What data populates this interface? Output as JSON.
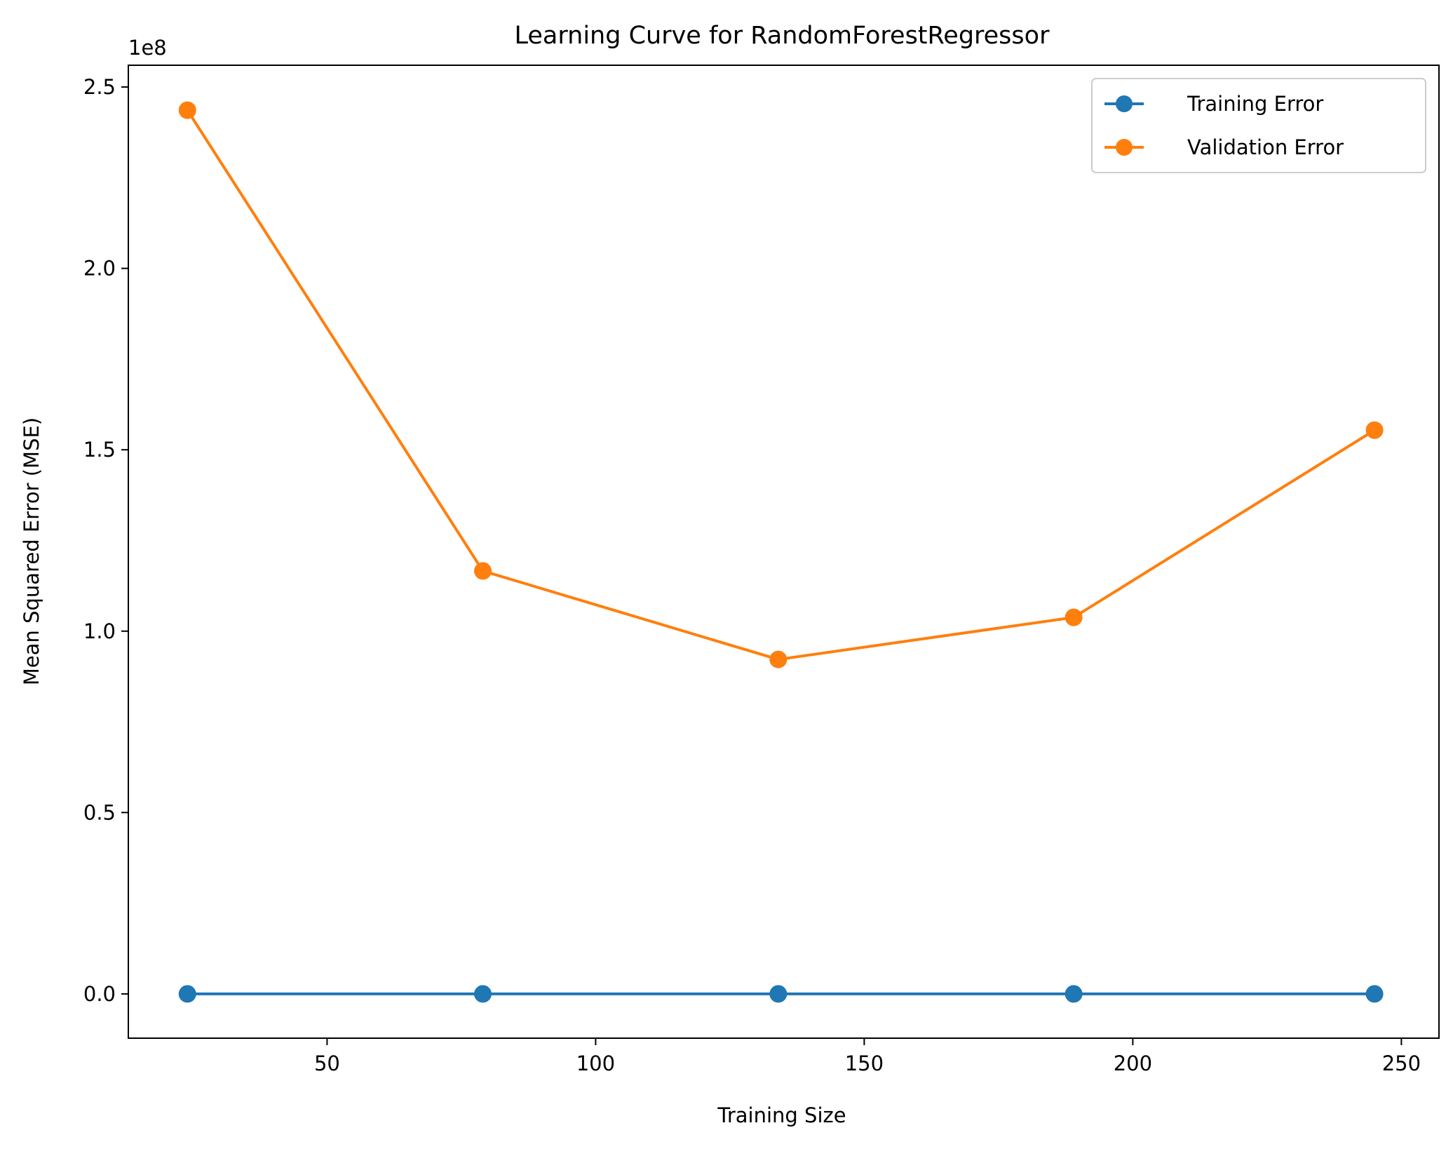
{
  "chart_data": {
    "type": "line",
    "title": "Learning Curve for RandomForestRegressor",
    "xlabel": "Training Size",
    "ylabel": "Mean Squared Error (MSE)",
    "y_offset_label": "1e8",
    "x": [
      24,
      79,
      134,
      189,
      245
    ],
    "series": [
      {
        "name": "Training Error",
        "color": "#1f77b4",
        "marker": "circle",
        "values": [
          0,
          0,
          0,
          0,
          0
        ]
      },
      {
        "name": "Validation Error",
        "color": "#ff7f0e",
        "marker": "circle",
        "values": [
          243600000,
          116600000,
          92200000,
          103800000,
          155400000
        ]
      }
    ],
    "xlim": [
      13,
      257
    ],
    "ylim": [
      -12200000,
      256000000
    ],
    "x_ticks": [
      50,
      100,
      150,
      200,
      250
    ],
    "x_tick_labels": [
      "50",
      "100",
      "150",
      "200",
      "250"
    ],
    "y_ticks": [
      0,
      50000000,
      100000000,
      150000000,
      200000000,
      250000000
    ],
    "y_tick_labels": [
      "0.0",
      "0.5",
      "1.0",
      "1.5",
      "2.0",
      "2.5"
    ],
    "grid": false,
    "legend_position": "top-right"
  }
}
